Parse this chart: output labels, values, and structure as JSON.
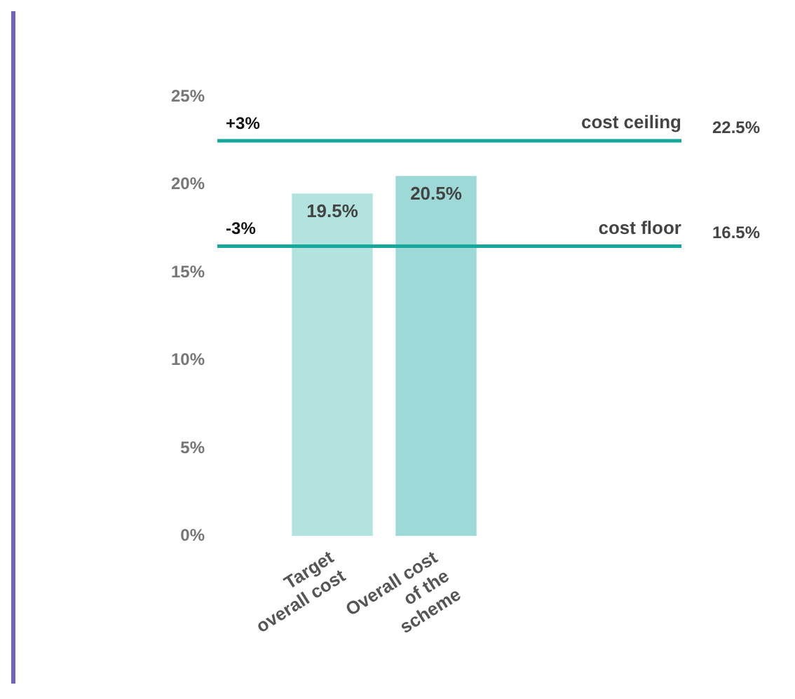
{
  "chart_data": {
    "type": "bar",
    "categories": [
      "Target overall cost",
      "Overall cost of the scheme"
    ],
    "values": [
      19.5,
      20.5
    ],
    "colors": [
      "#b3e3df",
      "#9dd9d6"
    ],
    "value_labels": [
      "19.5%",
      "20.5%"
    ],
    "ylim": [
      0,
      25
    ],
    "yticks": [
      {
        "value": 0,
        "label": "0%"
      },
      {
        "value": 5,
        "label": "5%"
      },
      {
        "value": 10,
        "label": "10%"
      },
      {
        "value": 15,
        "label": "15%"
      },
      {
        "value": 20,
        "label": "20%"
      },
      {
        "value": 25,
        "label": "25%"
      }
    ],
    "ref_lines": [
      {
        "axis": "y",
        "value": 22.5,
        "label": "cost ceiling",
        "color": "#16a89a"
      },
      {
        "axis": "y",
        "value": 16.5,
        "label": "cost floor",
        "color": "#16a89a"
      }
    ],
    "annotations": [
      {
        "text": "+3%",
        "y": 22.5
      },
      "22.5%",
      {
        "text": "-3%",
        "y": 16.5
      },
      "16.5%"
    ],
    "grid": false,
    "legend": false
  }
}
